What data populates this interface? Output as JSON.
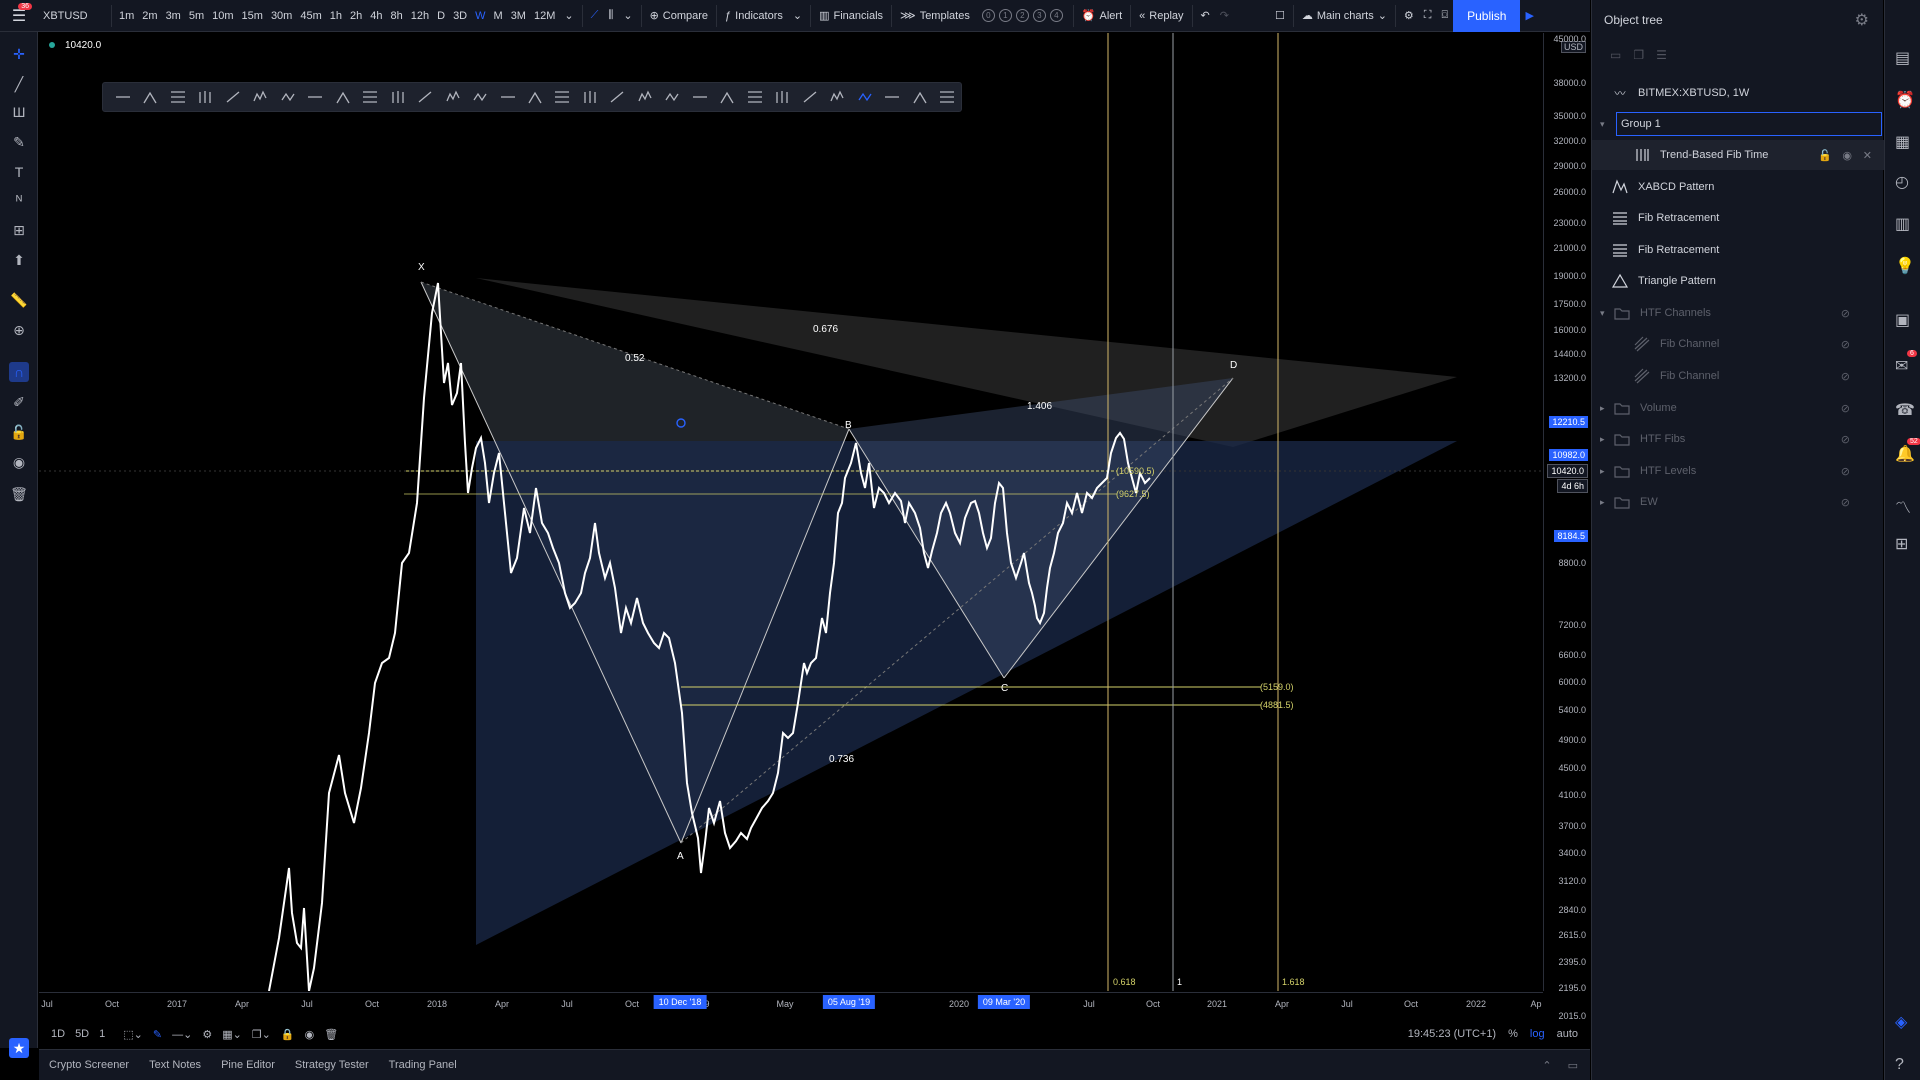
{
  "topbar": {
    "notif_count": "36",
    "symbol": "XBTUSD",
    "intervals": [
      "1m",
      "2m",
      "3m",
      "5m",
      "10m",
      "15m",
      "30m",
      "45m",
      "1h",
      "2h",
      "4h",
      "8h",
      "12h",
      "D",
      "3D",
      "W",
      "M",
      "3M",
      "12M"
    ],
    "active_interval": "W",
    "compare": "Compare",
    "indicators": "Indicators",
    "financials": "Financials",
    "templates": "Templates",
    "template_slots": [
      "0",
      "1",
      "2",
      "3",
      "4"
    ],
    "alert": "Alert",
    "replay": "Replay",
    "layout": "Main charts",
    "publish": "Publish"
  },
  "legend": {
    "price": "10420.0"
  },
  "price_axis": {
    "currency": "USD",
    "labels": [
      "38000.0",
      "35000.0",
      "32000.0",
      "29000.0",
      "26000.0",
      "23000.0",
      "21000.0",
      "19000.0",
      "17500.0",
      "16000.0",
      "14400.0",
      "13200.0",
      "8800.0",
      "7200.0",
      "6600.0",
      "6000.0",
      "5400.0",
      "4900.0",
      "4500.0",
      "4100.0",
      "3700.0",
      "3400.0",
      "3120.0",
      "2840.0",
      "2615.0",
      "2395.0",
      "2195.0",
      "2015.0"
    ],
    "top_label": "45000.0",
    "badges": [
      {
        "text": "12210.5",
        "color": "#2962ff"
      },
      {
        "text": "10982.0",
        "color": "#2962ff"
      },
      {
        "text": "10420.0",
        "color": "#131722"
      },
      {
        "text": "4d 6h",
        "color": "#131722"
      },
      {
        "text": "8184.5",
        "color": "#2962ff"
      }
    ]
  },
  "time_axis": {
    "labels": [
      "Jul",
      "Oct",
      "2017",
      "Apr",
      "Jul",
      "Oct",
      "2018",
      "Apr",
      "Jul",
      "Oct",
      "May",
      "2020",
      "Jul",
      "Oct",
      "2021",
      "Apr",
      "Jul",
      "Oct",
      "2022",
      "Ap"
    ],
    "highlights": [
      "10 Dec '18",
      "05 Aug '19",
      "09 Mar '20"
    ],
    "partial_label": "9"
  },
  "chart_labels": {
    "X": "X",
    "A": "A",
    "B": "B",
    "C": "C",
    "D": "D",
    "r052": "0.52",
    "r0676": "0.676",
    "r1406": "1.406",
    "r0736": "0.736",
    "fib1": "(10590.5)",
    "fib2": "(9627.5)",
    "fib3": "(5159.0)",
    "fib4": "(4881.5)",
    "t0618": "0.618",
    "t1": "1",
    "t1618": "1.618"
  },
  "bottom_controls": {
    "ranges": [
      "1D",
      "5D",
      "1"
    ],
    "clock": "19:45:23 (UTC+1)",
    "pct": "%",
    "log": "log",
    "auto": "auto"
  },
  "bottom_tabs": [
    "Crypto Screener",
    "Text Notes",
    "Pine Editor",
    "Strategy Tester",
    "Trading Panel"
  ],
  "object_tree": {
    "title": "Object tree",
    "series": "BITMEX:XBTUSD, 1W",
    "group_input": "Group 1",
    "items": [
      {
        "label": "Trend-Based Fib Time",
        "icon": "fib-time-icon"
      },
      {
        "label": "XABCD Pattern",
        "icon": "xabcd-icon"
      },
      {
        "label": "Fib Retracement",
        "icon": "fib-retracement-icon"
      },
      {
        "label": "Fib Retracement",
        "icon": "fib-retracement-icon"
      },
      {
        "label": "Triangle Pattern",
        "icon": "triangle-pattern-icon"
      }
    ],
    "groups": [
      {
        "label": "HTF Channels"
      },
      {
        "label": "Fib Channel"
      },
      {
        "label": "Fib Channel"
      },
      {
        "label": "Volume"
      },
      {
        "label": "HTF Fibs"
      },
      {
        "label": "HTF Levels"
      },
      {
        "label": "EW"
      }
    ]
  },
  "right_badges": {
    "a": "6",
    "b": "52"
  }
}
